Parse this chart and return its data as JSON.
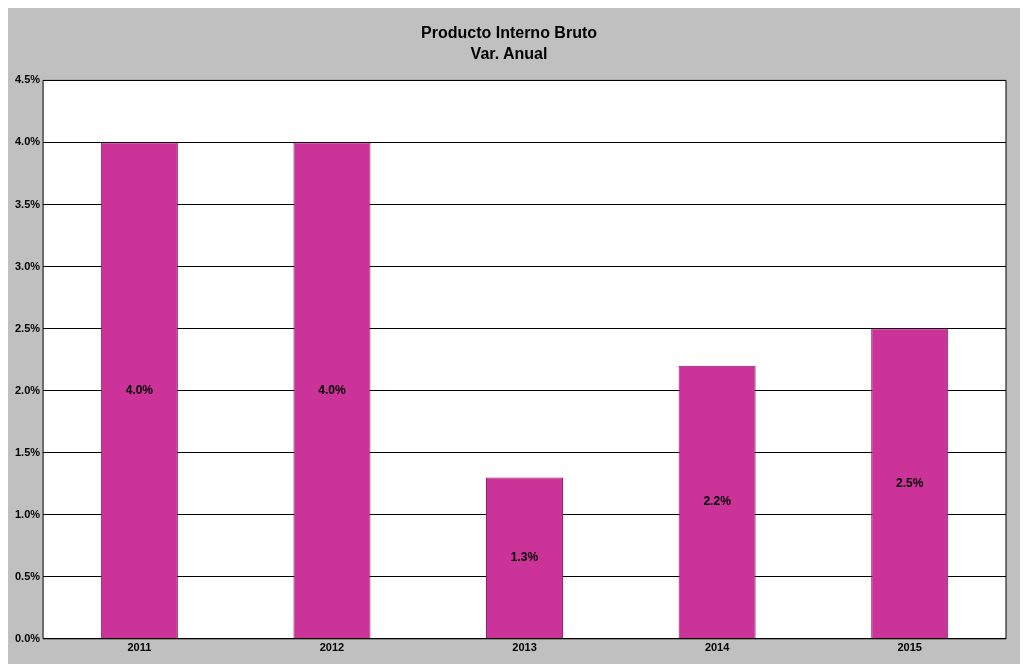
{
  "chart_data": {
    "type": "bar",
    "title": "Producto Interno Bruto",
    "subtitle": "Var. Anual",
    "categories": [
      "2011",
      "2012",
      "2013",
      "2014",
      "2015"
    ],
    "values": [
      4.0,
      4.0,
      1.3,
      2.2,
      2.5
    ],
    "value_labels": [
      "4.0%",
      "4.0%",
      "1.3%",
      "2.2%",
      "2.5%"
    ],
    "color": "#cc3399",
    "ylim": [
      0,
      4.5
    ],
    "yticks": [
      {
        "value": 0,
        "label": "0.0%"
      },
      {
        "value": 0.5,
        "label": "0.5%"
      },
      {
        "value": 1,
        "label": "1.0%"
      },
      {
        "value": 1.5,
        "label": "1.5%"
      },
      {
        "value": 2,
        "label": "2.0%"
      },
      {
        "value": 2.5,
        "label": "2.5%"
      },
      {
        "value": 3,
        "label": "3.0%"
      },
      {
        "value": 3.5,
        "label": "3.5%"
      },
      {
        "value": 4,
        "label": "4.0%"
      },
      {
        "value": 4.5,
        "label": "4.5%"
      }
    ],
    "grid": "y",
    "legend": false
  }
}
